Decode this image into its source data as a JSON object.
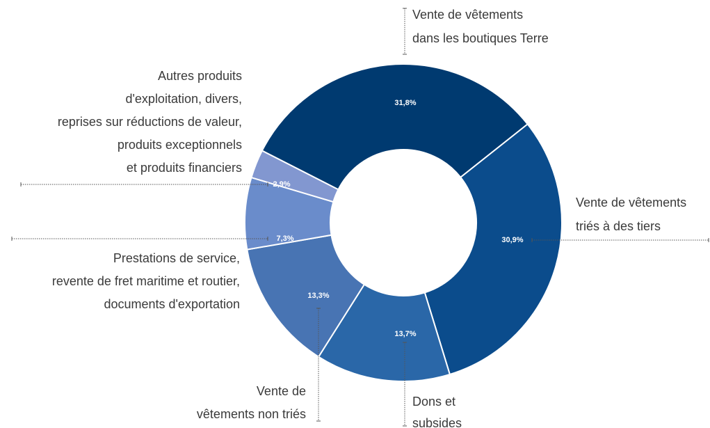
{
  "chart_data": {
    "type": "donut",
    "categories": [
      [
        "Vente de vêtements",
        "dans les boutiques Terre"
      ],
      [
        "Vente de vêtements",
        "triés à des tiers"
      ],
      [
        "Dons et",
        "subsides"
      ],
      [
        "Vente de",
        "vêtements non triés"
      ],
      [
        "Prestations de service,",
        "revente de fret maritime et routier,",
        "documents d'exportation"
      ],
      [
        "Autres produits",
        "d'exploitation, divers,",
        "reprises sur réductions de valeur,",
        "produits exceptionnels",
        "et produits financiers"
      ]
    ],
    "values": [
      31.8,
      30.9,
      13.7,
      13.3,
      7.3,
      2.9
    ],
    "value_labels": [
      "31,8%",
      "30,9%",
      "13,7%",
      "13,3%",
      "7,3%",
      "2,9%"
    ],
    "colors": [
      "#003a70",
      "#0b4c8c",
      "#2a67a8",
      "#4874b3",
      "#6a8ccb",
      "#8297d0"
    ]
  }
}
